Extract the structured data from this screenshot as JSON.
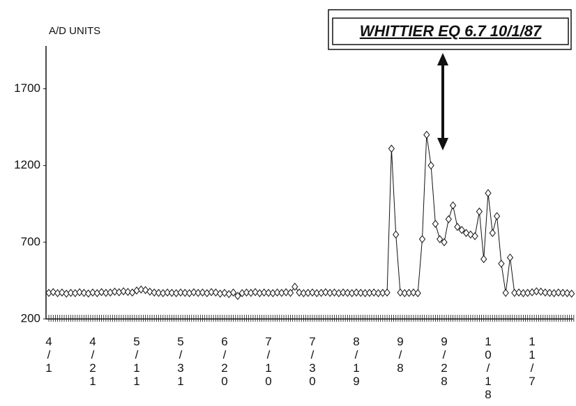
{
  "chart_data": {
    "type": "line",
    "title": "WHITTIER EQ 6.7 10/1/87",
    "y_label": "A/D UNITS",
    "categories": [
      "4/1",
      null,
      null,
      null,
      null,
      null,
      null,
      null,
      null,
      null,
      "4/21",
      null,
      null,
      null,
      null,
      null,
      null,
      null,
      null,
      null,
      "5/11",
      null,
      null,
      null,
      null,
      null,
      null,
      null,
      null,
      null,
      "5/31",
      null,
      null,
      null,
      null,
      null,
      null,
      null,
      null,
      null,
      "6/20",
      null,
      null,
      null,
      null,
      null,
      null,
      null,
      null,
      null,
      "7/10",
      null,
      null,
      null,
      null,
      null,
      null,
      null,
      null,
      null,
      "7/30",
      null,
      null,
      null,
      null,
      null,
      null,
      null,
      null,
      null,
      "8/19",
      null,
      null,
      null,
      null,
      null,
      null,
      null,
      null,
      null,
      "9/8",
      null,
      null,
      null,
      null,
      null,
      null,
      null,
      null,
      null,
      "9/28",
      null,
      null,
      null,
      null,
      null,
      null,
      null,
      null,
      null,
      "10/18",
      null,
      null,
      null,
      null,
      null,
      null,
      null,
      null,
      null,
      "11/7",
      null,
      null,
      null,
      null,
      null,
      null,
      null,
      null,
      null
    ],
    "series": [
      {
        "name": "A/D",
        "color": "#111111",
        "values": [
          370,
          375,
          368,
          372,
          365,
          370,
          368,
          374,
          370,
          366,
          372,
          368,
          375,
          370,
          372,
          378,
          374,
          380,
          376,
          372,
          385,
          392,
          388,
          378,
          372,
          370,
          368,
          372,
          370,
          368,
          372,
          370,
          368,
          374,
          370,
          372,
          368,
          375,
          372,
          365,
          370,
          362,
          372,
          350,
          368,
          372,
          370,
          375,
          368,
          372,
          370,
          368,
          372,
          370,
          374,
          370,
          410,
          372,
          368,
          370,
          372,
          368,
          370,
          374,
          370,
          372,
          368,
          372,
          370,
          368,
          372,
          370,
          368,
          370,
          372,
          368,
          370,
          372,
          1310,
          750,
          372,
          368,
          370,
          372,
          368,
          720,
          1400,
          1200,
          820,
          720,
          700,
          850,
          940,
          800,
          780,
          760,
          750,
          740,
          900,
          590,
          1020,
          760,
          870,
          560,
          370,
          600,
          370,
          372,
          368,
          370,
          374,
          380,
          378,
          372,
          370,
          368,
          372,
          370,
          368,
          365
        ]
      }
    ],
    "ylim": [
      200,
      1970
    ],
    "yticks": [
      200,
      700,
      1200,
      1700
    ]
  }
}
